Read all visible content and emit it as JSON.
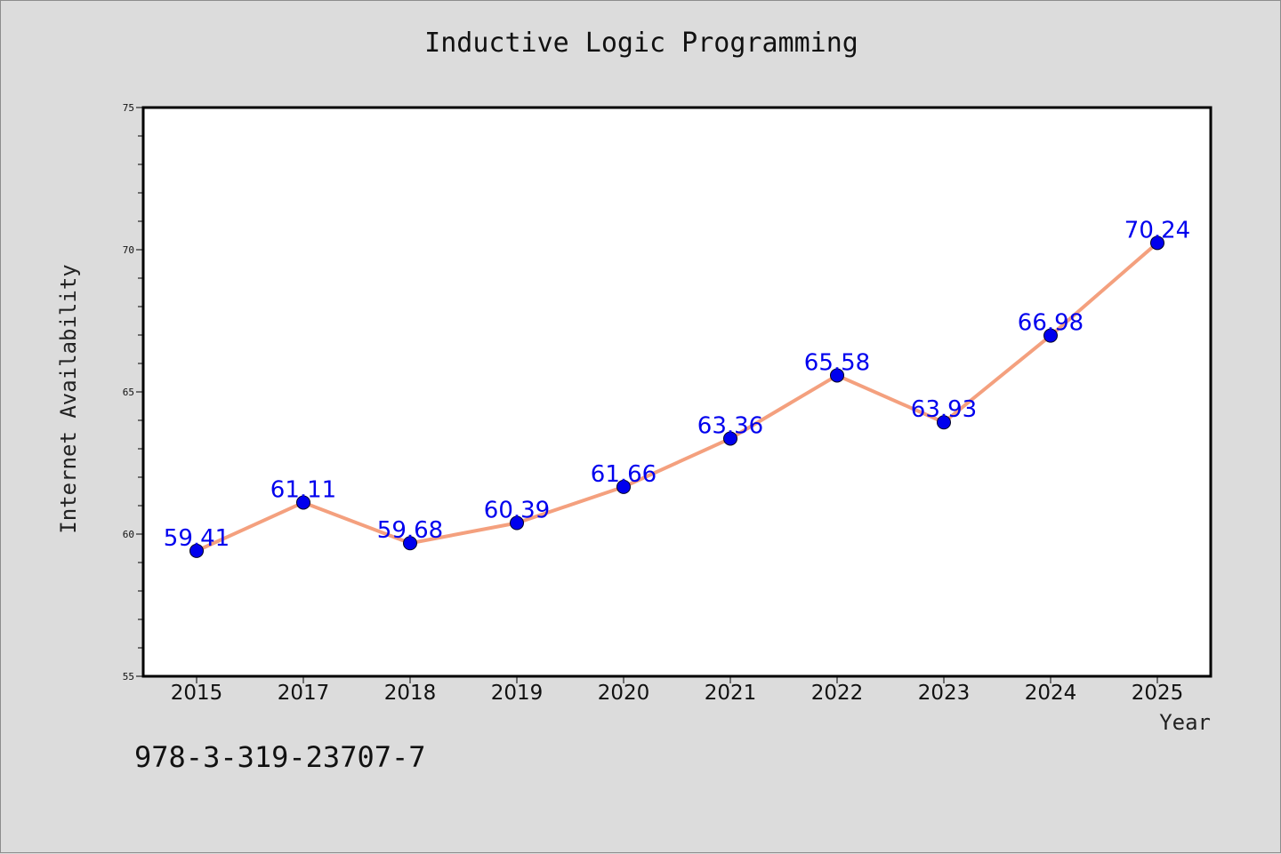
{
  "chart_data": {
    "type": "line",
    "title": "Inductive Logic Programming",
    "xlabel": "Year",
    "ylabel": "Internet Availability",
    "categories": [
      "2015",
      "2017",
      "2018",
      "2019",
      "2020",
      "2021",
      "2022",
      "2023",
      "2024",
      "2025"
    ],
    "values": [
      59.41,
      61.11,
      59.68,
      60.39,
      61.66,
      63.36,
      65.58,
      63.93,
      66.98,
      70.24
    ],
    "data_labels": [
      "59.41",
      "61.11",
      "59.68",
      "60.39",
      "61.66",
      "63.36",
      "65.58",
      "63.93",
      "66.98",
      "70.24"
    ],
    "ylim": [
      55,
      75
    ],
    "y_major_ticks": [
      55,
      60,
      65,
      70,
      75
    ],
    "y_minor_step": 1,
    "grid": false,
    "line_color": "#f4a07e",
    "marker_color": "#0000ee",
    "label_color": "#0000ee"
  },
  "footer": {
    "code": "978-3-319-23707-7"
  }
}
